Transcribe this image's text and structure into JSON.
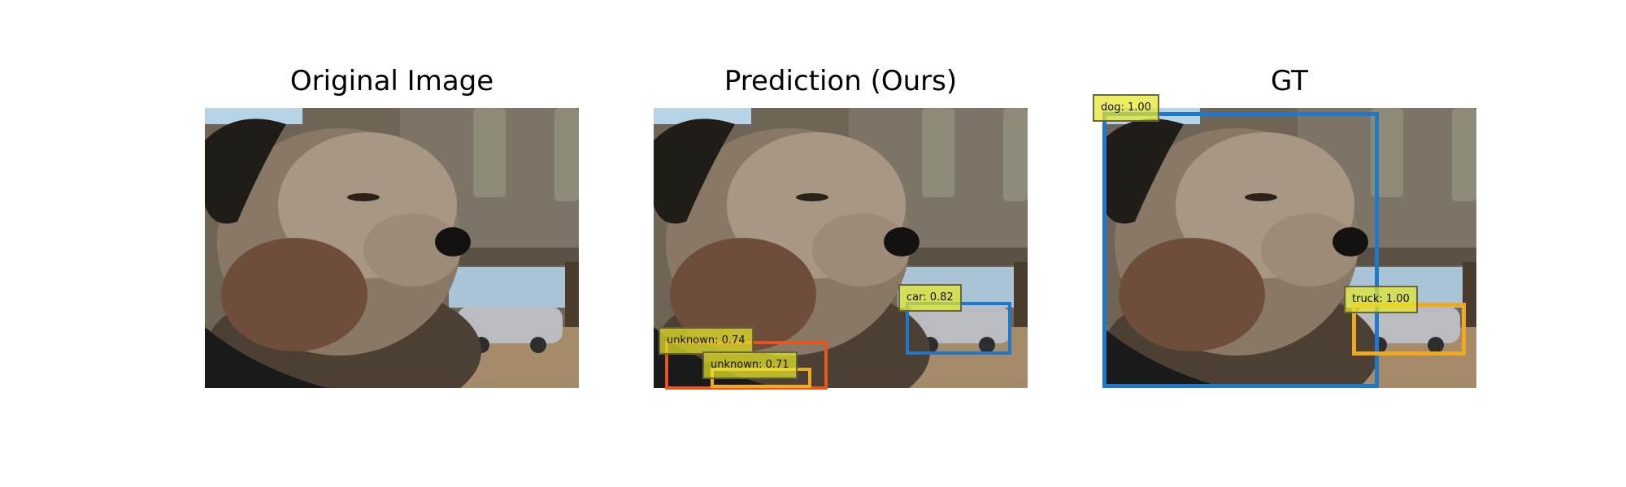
{
  "panels": [
    {
      "title": "Original Image"
    },
    {
      "title": "Prediction (Ours)"
    },
    {
      "title": "GT"
    }
  ],
  "prediction_detections": [
    {
      "label": "unknown: 0.74",
      "color": "#e8541e"
    },
    {
      "label": "unknown: 0.71",
      "color": "#f0a81e"
    },
    {
      "label": "car: 0.82",
      "color": "#1f78c8"
    }
  ],
  "gt_detections": [
    {
      "label": "dog: 1.00",
      "color": "#1f78c8"
    },
    {
      "label": "truck: 1.00",
      "color": "#f0a81e"
    }
  ],
  "colors": {
    "label_fill": "rgba(230,230,40,0.72)",
    "background": "#ffffff"
  }
}
